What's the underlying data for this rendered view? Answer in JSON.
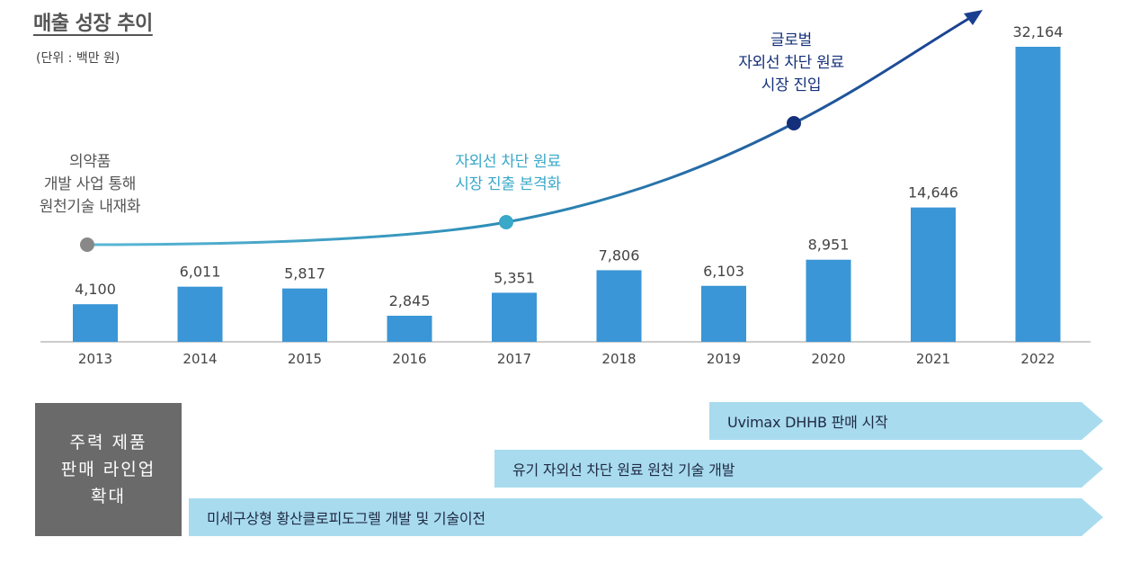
{
  "header": {
    "title": "매출 성장 추이",
    "unit": "(단위 : 백만 원)"
  },
  "chart_data": {
    "type": "bar",
    "title": "매출 성장 추이",
    "unit": "(단위 : 백만 원)",
    "categories": [
      "2013",
      "2014",
      "2015",
      "2016",
      "2017",
      "2018",
      "2019",
      "2020",
      "2021",
      "2022"
    ],
    "values": [
      4100,
      6011,
      5817,
      2845,
      5351,
      7806,
      6103,
      8951,
      14646,
      32164
    ],
    "value_labels": [
      "4,100",
      "6,011",
      "5,817",
      "2,845",
      "5,351",
      "7,806",
      "6,103",
      "8,951",
      "14,646",
      "32,164"
    ],
    "bar_color": "#3a96d6",
    "annotations": [
      {
        "text": "의약품\n개발 사업 통해\n원천기술 내재화",
        "color": "#555555"
      },
      {
        "text": "자외선 차단 원료\n시장 진출 본격화",
        "color": "#3aa8c8"
      },
      {
        "text": "글로벌\n자외선 차단 원료\n시장 진입",
        "color": "#14307a"
      }
    ]
  },
  "lineup": {
    "box_label": "주력 제품\n판매 라인업\n확대",
    "arrows": [
      "Uvimax DHHB 판매 시작",
      "유기 자외선 차단 원료 원천 기술 개발",
      "미세구상형 황산클로피도그렐 개발 및 기술이전"
    ]
  }
}
